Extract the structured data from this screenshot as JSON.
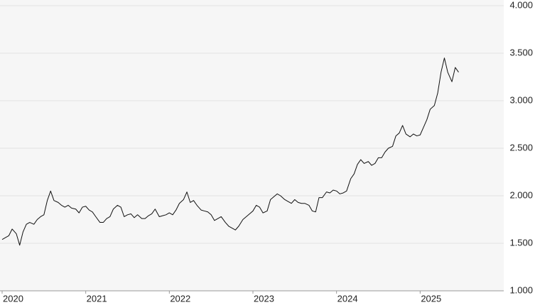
{
  "chart_data": {
    "type": "line",
    "x": [
      2020.0,
      2020.04,
      2020.08,
      2020.12,
      2020.17,
      2020.21,
      2020.25,
      2020.29,
      2020.33,
      2020.38,
      2020.42,
      2020.46,
      2020.5,
      2020.54,
      2020.58,
      2020.62,
      2020.67,
      2020.71,
      2020.75,
      2020.79,
      2020.83,
      2020.88,
      2020.92,
      2020.96,
      2021.0,
      2021.04,
      2021.08,
      2021.12,
      2021.17,
      2021.21,
      2021.25,
      2021.29,
      2021.33,
      2021.38,
      2021.42,
      2021.46,
      2021.5,
      2021.54,
      2021.58,
      2021.62,
      2021.67,
      2021.71,
      2021.75,
      2021.79,
      2021.83,
      2021.88,
      2021.92,
      2021.96,
      2022.0,
      2022.04,
      2022.08,
      2022.12,
      2022.17,
      2022.21,
      2022.25,
      2022.29,
      2022.33,
      2022.38,
      2022.42,
      2022.46,
      2022.5,
      2022.54,
      2022.58,
      2022.62,
      2022.67,
      2022.71,
      2022.75,
      2022.79,
      2022.83,
      2022.88,
      2022.92,
      2022.96,
      2023.0,
      2023.04,
      2023.08,
      2023.12,
      2023.17,
      2023.21,
      2023.25,
      2023.29,
      2023.33,
      2023.38,
      2023.42,
      2023.46,
      2023.5,
      2023.54,
      2023.58,
      2023.62,
      2023.67,
      2023.71,
      2023.75,
      2023.79,
      2023.83,
      2023.88,
      2023.92,
      2023.96,
      2024.0,
      2024.04,
      2024.08,
      2024.12,
      2024.17,
      2024.21,
      2024.25,
      2024.29,
      2024.33,
      2024.38,
      2024.42,
      2024.46,
      2024.5,
      2024.54,
      2024.58,
      2024.62,
      2024.67,
      2024.71,
      2024.75,
      2024.79,
      2024.83,
      2024.88,
      2024.92,
      2024.96,
      2025.0,
      2025.04,
      2025.08,
      2025.12,
      2025.17,
      2025.21,
      2025.25,
      2025.29,
      2025.33,
      2025.38,
      2025.42,
      2025.46
    ],
    "series": [
      {
        "color": "#111111",
        "values": [
          1540,
          1560,
          1580,
          1650,
          1600,
          1480,
          1620,
          1700,
          1720,
          1700,
          1750,
          1780,
          1800,
          1950,
          2050,
          1950,
          1930,
          1900,
          1880,
          1900,
          1870,
          1860,
          1820,
          1880,
          1890,
          1850,
          1830,
          1780,
          1720,
          1720,
          1760,
          1780,
          1860,
          1900,
          1880,
          1780,
          1800,
          1810,
          1770,
          1800,
          1760,
          1760,
          1790,
          1810,
          1860,
          1780,
          1790,
          1800,
          1820,
          1800,
          1850,
          1920,
          1960,
          2040,
          1930,
          1950,
          1900,
          1850,
          1840,
          1830,
          1800,
          1740,
          1760,
          1780,
          1720,
          1680,
          1660,
          1640,
          1680,
          1750,
          1780,
          1810,
          1840,
          1900,
          1880,
          1820,
          1840,
          1960,
          1990,
          2020,
          2000,
          1960,
          1940,
          1920,
          1960,
          1930,
          1920,
          1920,
          1900,
          1840,
          1830,
          1980,
          1980,
          2040,
          2030,
          2060,
          2050,
          2020,
          2030,
          2050,
          2180,
          2230,
          2330,
          2380,
          2340,
          2360,
          2320,
          2340,
          2400,
          2400,
          2460,
          2500,
          2520,
          2630,
          2660,
          2740,
          2650,
          2620,
          2650,
          2630,
          2640,
          2720,
          2800,
          2910,
          2950,
          3080,
          3300,
          3450,
          3300,
          3200,
          3350,
          3300
        ]
      }
    ],
    "xlim": [
      2020,
      2026
    ],
    "xticks": [
      2020,
      2021,
      2022,
      2023,
      2024,
      2025
    ],
    "ylim": [
      1000,
      4000
    ],
    "yticks": [
      {
        "value": 1000,
        "label": "1.000"
      },
      {
        "value": 1500,
        "label": "1.500"
      },
      {
        "value": 2000,
        "label": "2.000"
      },
      {
        "value": 2500,
        "label": "2.500"
      },
      {
        "value": 3000,
        "label": "3.000"
      },
      {
        "value": 3500,
        "label": "3.500"
      },
      {
        "value": 4000,
        "label": "4.000"
      }
    ],
    "grid": true
  }
}
